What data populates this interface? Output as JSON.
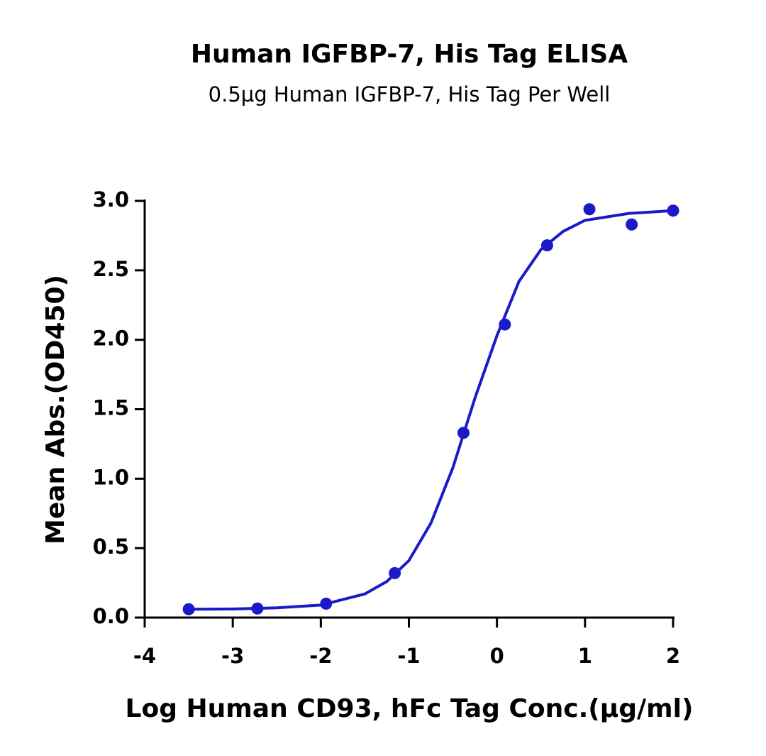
{
  "chart_data": {
    "type": "scatter",
    "title": "Human IGFBP-7, His Tag ELISA",
    "subtitle": "0.5µg Human IGFBP-7, His Tag Per Well",
    "x_label": "Log Human CD93, hFc Tag Conc.(µg/ml)",
    "y_label": "Mean Abs.(OD450)",
    "color": "#1a1ac8",
    "x": [
      -3.5,
      -2.72,
      -1.94,
      -1.16,
      -0.38,
      0.09,
      0.57,
      1.05,
      1.53,
      2.0
    ],
    "values": [
      0.06,
      0.065,
      0.1,
      0.32,
      1.33,
      2.11,
      2.68,
      2.94,
      2.83,
      2.93
    ],
    "curve": {
      "x": [
        -3.5,
        -3,
        -2.5,
        -2,
        -1.5,
        -1.25,
        -1,
        -0.75,
        -0.5,
        -0.25,
        0,
        0.25,
        0.5,
        0.75,
        1,
        1.5,
        2
      ],
      "values": [
        0.06,
        0.062,
        0.07,
        0.09,
        0.17,
        0.26,
        0.41,
        0.68,
        1.08,
        1.58,
        2.03,
        2.42,
        2.65,
        2.78,
        2.86,
        2.91,
        2.93
      ]
    },
    "xlim": [
      -4,
      2
    ],
    "ylim": [
      0,
      3
    ],
    "xticks": [
      -4,
      -3,
      -2,
      -1,
      0,
      1,
      2
    ],
    "yticks": [
      {
        "value": 0,
        "label": "0.0"
      },
      0.5,
      {
        "value": 1,
        "label": "1.0"
      },
      1.5,
      {
        "value": 2,
        "label": "2.0"
      },
      2.5,
      {
        "value": 3,
        "label": "3.0"
      }
    ]
  }
}
